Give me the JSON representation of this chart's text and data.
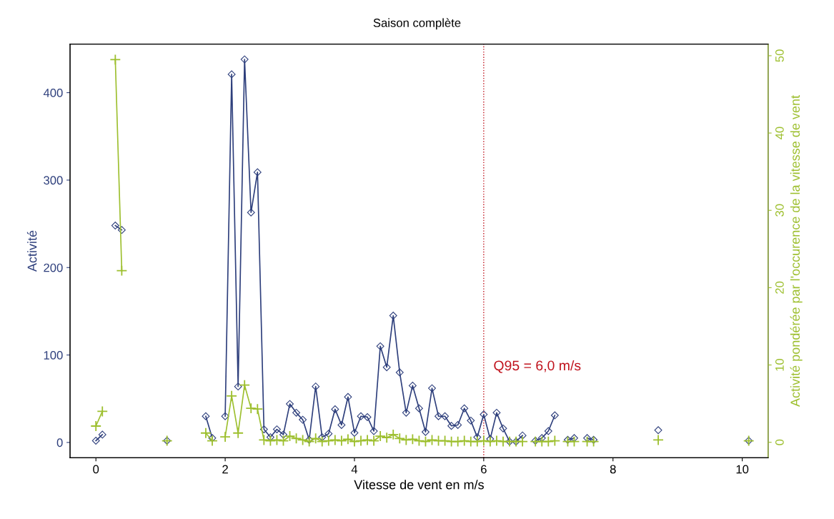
{
  "chart_data": {
    "type": "line",
    "title": "Saison complète",
    "xlabel": "Vitesse de vent en m/s",
    "ylabel": "Activité",
    "y2label": "Activité pondérée par l'occurence de la vitesse de vent",
    "xlim": [
      -0.4,
      10.4
    ],
    "xticks": [
      0,
      2,
      4,
      6,
      8,
      10
    ],
    "ylim": [
      -17.5,
      455.5
    ],
    "yticks": [
      0,
      100,
      200,
      300,
      400
    ],
    "y2lim": [
      -2,
      51.5
    ],
    "y2ticks": [
      0,
      10,
      20,
      30,
      40,
      50
    ],
    "grid": false,
    "legend": false,
    "line_style": "solid",
    "series": [
      {
        "color": "#2e3f7c",
        "marker": "diamond",
        "x": [
          0,
          0.1,
          0.2,
          0.3,
          0.4,
          0.5,
          1.1,
          1.2,
          1.7,
          1.8,
          1.9,
          2.0,
          2.1,
          2.2,
          2.3,
          2.4,
          2.5,
          2.6,
          2.7,
          2.8,
          2.9,
          3.0,
          3.1,
          3.2,
          3.3,
          3.4,
          3.5,
          3.6,
          3.7,
          3.8,
          3.9,
          4.0,
          4.1,
          4.2,
          4.3,
          4.4,
          4.5,
          4.6,
          4.7,
          4.8,
          4.9,
          5.0,
          5.1,
          5.2,
          5.3,
          5.4,
          5.5,
          5.6,
          5.7,
          5.8,
          5.9,
          6.0,
          6.1,
          6.2,
          6.3,
          6.4,
          6.5,
          6.6,
          6.7,
          6.8,
          6.9,
          7.0,
          7.1,
          7.2,
          7.3,
          7.4,
          7.5,
          7.6,
          7.7,
          7.8,
          8.7,
          8.8,
          10.1
        ],
        "values": [
          2,
          9,
          null,
          248,
          243,
          null,
          2,
          null,
          30,
          5,
          null,
          30,
          421,
          64,
          438,
          263,
          309,
          15,
          6,
          15,
          9,
          44,
          34,
          26,
          3,
          64,
          6,
          10,
          38,
          20,
          52,
          11,
          30,
          29,
          13,
          110,
          86,
          145,
          80,
          34,
          65,
          39,
          12,
          62,
          30,
          30,
          19,
          20,
          39,
          25,
          6,
          32,
          4,
          34,
          16,
          1,
          1,
          8,
          null,
          2,
          5,
          13,
          31,
          null,
          3,
          5,
          null,
          5,
          3,
          null,
          14,
          null,
          2
        ]
      },
      {
        "color": "#9dbf2e",
        "marker": "cross",
        "axis": "y2",
        "x": [
          0,
          0.1,
          0.2,
          0.3,
          0.4,
          0.5,
          1.1,
          1.2,
          1.7,
          1.8,
          1.9,
          2.0,
          2.1,
          2.2,
          2.3,
          2.4,
          2.5,
          2.6,
          2.7,
          2.8,
          2.9,
          3.0,
          3.1,
          3.2,
          3.3,
          3.4,
          3.5,
          3.6,
          3.7,
          3.8,
          3.9,
          4.0,
          4.1,
          4.2,
          4.3,
          4.4,
          4.5,
          4.6,
          4.7,
          4.8,
          4.9,
          5.0,
          5.1,
          5.2,
          5.3,
          5.4,
          5.5,
          5.6,
          5.7,
          5.8,
          5.9,
          6.0,
          6.1,
          6.2,
          6.3,
          6.4,
          6.5,
          6.6,
          6.7,
          6.8,
          6.9,
          7.0,
          7.1,
          7.2,
          7.3,
          7.4,
          7.5,
          7.6,
          7.7,
          7.8,
          8.7,
          8.8,
          10.1
        ],
        "values": [
          2.1,
          4.0,
          null,
          49.5,
          22.2,
          null,
          0.2,
          null,
          1.2,
          0.2,
          null,
          0.7,
          6.0,
          1.2,
          7.4,
          4.4,
          4.3,
          0.3,
          0.2,
          0.3,
          0.2,
          0.8,
          0.5,
          0.3,
          0.1,
          0.5,
          0.1,
          0.2,
          0.3,
          0.2,
          0.4,
          0.1,
          0.2,
          0.3,
          0.2,
          0.8,
          0.6,
          1.0,
          0.5,
          0.3,
          0.4,
          0.2,
          0.1,
          0.3,
          0.2,
          0.2,
          0.1,
          0.1,
          0.2,
          0.1,
          0.1,
          0.2,
          0.1,
          0.2,
          0.1,
          0.1,
          0.1,
          0.1,
          null,
          0.1,
          0.1,
          0.1,
          0.2,
          null,
          0.1,
          0.1,
          null,
          0.1,
          0.1,
          null,
          0.3,
          null,
          0.2
        ]
      }
    ],
    "ref_lines": [
      {
        "axis": "x",
        "value": 6,
        "label": "Q95 = 6,0 m/s",
        "color": "#c0141e",
        "line_style": "dotted"
      }
    ]
  }
}
